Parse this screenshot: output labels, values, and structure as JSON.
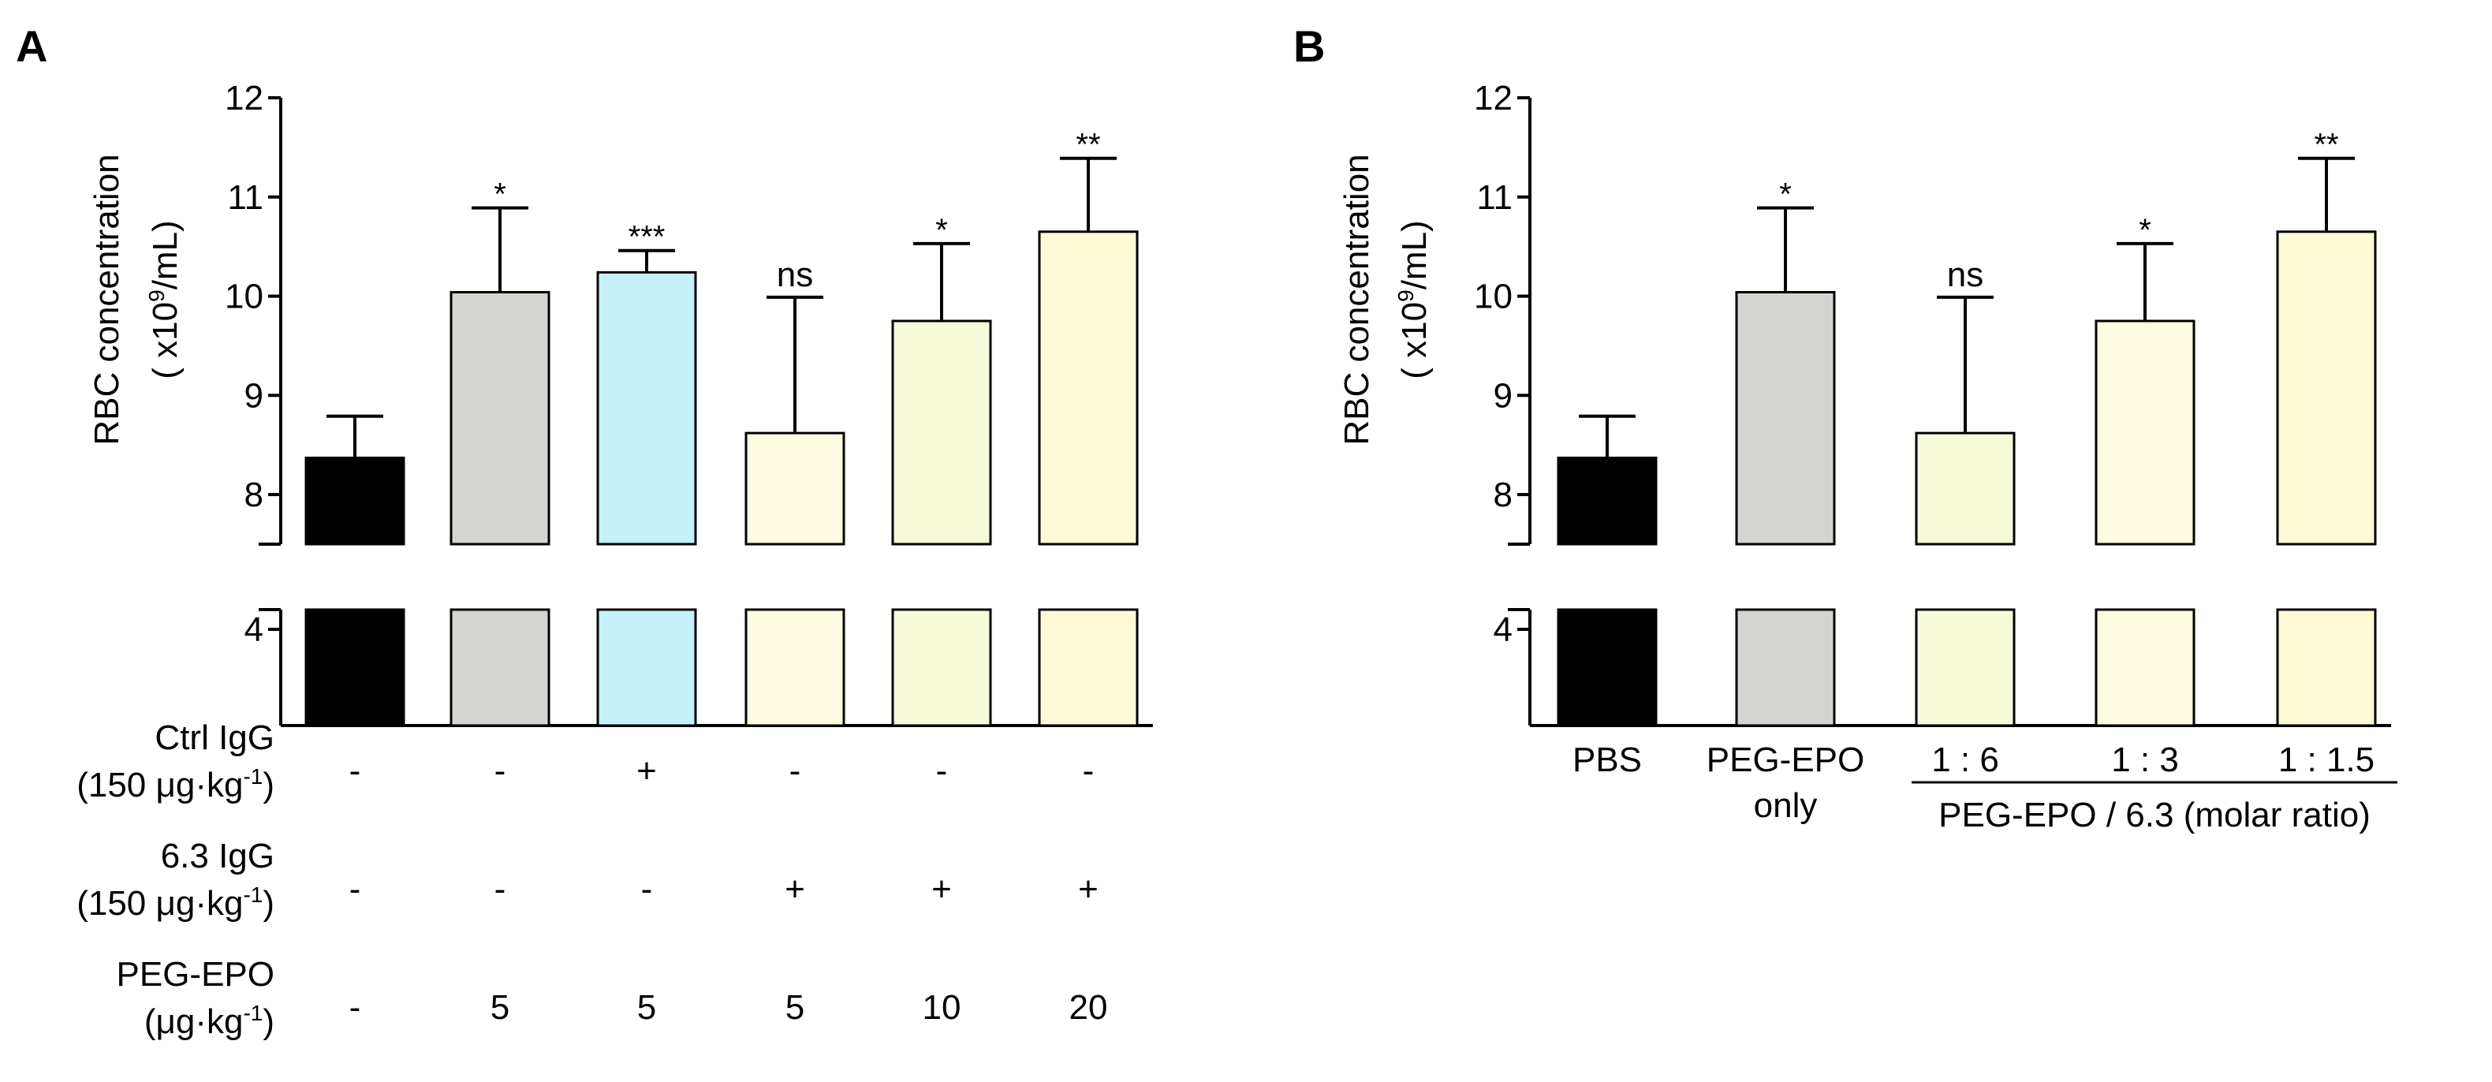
{
  "chart_data": [
    {
      "panel": "A",
      "type": "bar",
      "ylabel_line1": "RBC concentration",
      "ylabel_line2_prefix": "( x10",
      "ylabel_line2_sup": "9",
      "ylabel_line2_suffix": "/mL)",
      "y_axis_break": true,
      "ylim_upper": [
        7.5,
        12
      ],
      "ylim_lower_tick": 4,
      "yticks": [
        8,
        9,
        10,
        11,
        12
      ],
      "bars": [
        {
          "value": 8.37,
          "error": 0.42,
          "color": "#000000",
          "sig": ""
        },
        {
          "value": 10.04,
          "error": 0.85,
          "color": "#d4d4d0",
          "sig": "*"
        },
        {
          "value": 10.24,
          "error": 0.22,
          "color": "#c5f0fa",
          "sig": "***"
        },
        {
          "value": 8.62,
          "error": 1.37,
          "color": "#fdfbe0",
          "sig": "ns"
        },
        {
          "value": 9.75,
          "error": 0.78,
          "color": "#f6fad9",
          "sig": "*"
        },
        {
          "value": 10.65,
          "error": 0.74,
          "color": "#fdfad6",
          "sig": "**"
        }
      ],
      "condition_rows": [
        {
          "label_line1": "Ctrl IgG",
          "label_line2_prefix": "(150 μg·kg",
          "label_line2_sup": "-1",
          "label_line2_suffix": ")",
          "values": [
            "-",
            "-",
            "+",
            "-",
            "-",
            "-"
          ]
        },
        {
          "label_line1": "6.3 IgG",
          "label_line2_prefix": "(150 μg·kg",
          "label_line2_sup": "-1",
          "label_line2_suffix": ")",
          "values": [
            "-",
            "-",
            "-",
            "+",
            "+",
            "+"
          ]
        },
        {
          "label_line1": "PEG-EPO",
          "label_line2_prefix": "(μg·kg",
          "label_line2_sup": "-1",
          "label_line2_suffix": ")",
          "values": [
            "-",
            "5",
            "5",
            "5",
            "10",
            "20"
          ]
        }
      ]
    },
    {
      "panel": "B",
      "type": "bar",
      "ylabel_line1": "RBC concentration",
      "ylabel_line2_prefix": "( x10",
      "ylabel_line2_sup": "9",
      "ylabel_line2_suffix": "/mL)",
      "y_axis_break": true,
      "ylim_upper": [
        7.5,
        12
      ],
      "ylim_lower_tick": 4,
      "yticks": [
        8,
        9,
        10,
        11,
        12
      ],
      "bars": [
        {
          "label_lines": [
            "PBS"
          ],
          "value": 8.37,
          "error": 0.42,
          "color": "#000000",
          "sig": ""
        },
        {
          "label_lines": [
            "PEG-EPO",
            "only"
          ],
          "value": 10.04,
          "error": 0.85,
          "color": "#d4d4d0",
          "sig": "*"
        },
        {
          "label_lines": [
            "1 : 6"
          ],
          "value": 8.62,
          "error": 1.37,
          "color": "#f6fad9",
          "sig": "ns"
        },
        {
          "label_lines": [
            "1 : 3"
          ],
          "value": 9.75,
          "error": 0.78,
          "color": "#fdfbe0",
          "sig": "*"
        },
        {
          "label_lines": [
            "1 : 1.5"
          ],
          "value": 10.65,
          "error": 0.74,
          "color": "#fdfad6",
          "sig": "**"
        }
      ],
      "group_label": "PEG-EPO / 6.3 (molar ratio)"
    }
  ]
}
